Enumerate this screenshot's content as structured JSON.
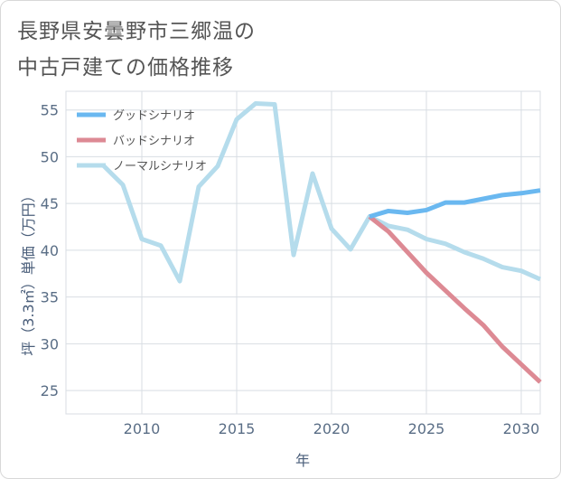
{
  "title_line1": "長野県安曇野市三郷温の",
  "title_line2": "中古戸建ての価格推移",
  "colors": {
    "good": "#6ab8f0",
    "bad": "#dd8a94",
    "normal": "#b5dcec",
    "grid": "#d8dde3",
    "axis_text": "#5a6e86"
  },
  "chart_data": {
    "type": "line",
    "xlabel": "年",
    "ylabel": "坪（3.3㎡）単価（万円）",
    "xlim": [
      2006,
      2031
    ],
    "ylim": [
      22.5,
      57
    ],
    "xticks": [
      2010,
      2015,
      2020,
      2025,
      2030
    ],
    "yticks": [
      25,
      30,
      35,
      40,
      45,
      50,
      55
    ],
    "legend_position": "top-left",
    "series": [
      {
        "key": "good",
        "name": "グッドシナリオ",
        "x": [
          2022,
          2023,
          2024,
          2025,
          2026,
          2027,
          2028,
          2029,
          2030,
          2031
        ],
        "values": [
          43.6,
          44.2,
          44.0,
          44.3,
          45.1,
          45.1,
          45.5,
          45.9,
          46.1,
          46.4
        ]
      },
      {
        "key": "bad",
        "name": "バッドシナリオ",
        "x": [
          2022,
          2023,
          2024,
          2025,
          2026,
          2027,
          2028,
          2029,
          2030,
          2031
        ],
        "values": [
          43.6,
          42.0,
          39.8,
          37.6,
          35.7,
          33.8,
          32.0,
          29.7,
          27.8,
          25.9
        ]
      },
      {
        "key": "normal",
        "name": "ノーマルシナリオ",
        "x": [
          2008,
          2009,
          2010,
          2011,
          2012,
          2013,
          2014,
          2015,
          2016,
          2017,
          2018,
          2019,
          2020,
          2021,
          2022,
          2023,
          2024,
          2025,
          2026,
          2027,
          2028,
          2029,
          2030,
          2031
        ],
        "values": [
          49.0,
          47.0,
          41.2,
          40.5,
          36.7,
          46.8,
          49.0,
          54.0,
          55.7,
          55.6,
          39.5,
          48.2,
          42.3,
          40.1,
          43.6,
          42.6,
          42.2,
          41.2,
          40.7,
          39.8,
          39.1,
          38.2,
          37.8,
          36.9
        ]
      }
    ]
  }
}
